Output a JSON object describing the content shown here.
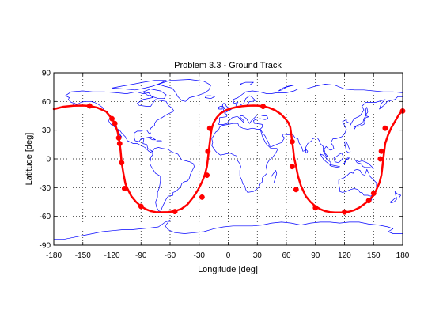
{
  "colors": {
    "coastline": "#0000ff",
    "track": "#ff0000",
    "grid": "#000000",
    "axes": "#000000",
    "background": "#ffffff"
  },
  "chart_data": {
    "type": "line",
    "title": "Problem 3.3 - Ground Track",
    "xlabel": "Longitude [deg]",
    "ylabel": "Latitude [deg]",
    "xlim": [
      -180,
      180
    ],
    "ylim": [
      -90,
      90
    ],
    "xticks": [
      -180,
      -150,
      -120,
      -90,
      -60,
      -30,
      0,
      30,
      60,
      90,
      120,
      150,
      180
    ],
    "yticks": [
      -90,
      -60,
      -30,
      0,
      30,
      60,
      90
    ],
    "grid": true,
    "legend": "none",
    "background_map": "world coastlines",
    "series": [
      {
        "color": "#ff0000",
        "marker": "circle",
        "x": [
          -180,
          -170,
          -160,
          -150,
          -143,
          -135,
          -126,
          -120,
          -117,
          -114,
          -113,
          -112,
          -111,
          -110,
          -108,
          -106,
          -104,
          -100,
          -95,
          -90,
          -85,
          -80,
          -75,
          -70,
          -62,
          -55,
          -48,
          -42,
          -36,
          -31,
          -27,
          -24,
          -22,
          -21,
          -20,
          -19,
          -18,
          -17,
          -15,
          -12,
          -8,
          -3,
          2,
          8,
          14,
          20,
          26,
          32,
          36,
          42,
          48,
          54,
          58,
          62,
          64,
          65,
          66,
          67,
          68,
          70,
          72,
          75,
          80,
          85,
          90,
          95,
          100,
          105,
          110,
          115,
          120,
          125,
          130,
          135,
          140,
          145,
          150,
          153,
          156,
          158,
          159,
          160,
          161,
          162,
          165,
          168,
          172,
          176,
          180
        ],
        "y": [
          52,
          54.5,
          55.5,
          55.7,
          55.3,
          53.5,
          49.5,
          42,
          37,
          28,
          22,
          16,
          8,
          -4,
          -16,
          -26,
          -31,
          -39,
          -45,
          -49.5,
          -52.5,
          -54.5,
          -55.5,
          -55.7,
          -55.5,
          -54.5,
          -52,
          -47.5,
          -40,
          -32,
          -24,
          -16,
          -8,
          0,
          9,
          17,
          26,
          32,
          38,
          43,
          47.5,
          50.5,
          52.5,
          54,
          55,
          55.5,
          55.7,
          55.5,
          55,
          53.5,
          51,
          47,
          43,
          38,
          33,
          26,
          18,
          10,
          1,
          -8,
          -18,
          -28,
          -39,
          -45,
          -49.5,
          -52.5,
          -54.5,
          -55.5,
          -56,
          -56,
          -55.8,
          -55,
          -53.5,
          -51,
          -47.5,
          -43.5,
          -38,
          -32,
          -25,
          -17,
          -9,
          0,
          8,
          16,
          25,
          32,
          39,
          46,
          51
        ],
        "markers": [
          [
            -143,
            55.3
          ],
          [
            -120,
            42
          ],
          [
            -117,
            37
          ],
          [
            -113,
            22
          ],
          [
            -112,
            16
          ],
          [
            -110,
            -4
          ],
          [
            -107,
            -31
          ],
          [
            -90,
            -49.5
          ],
          [
            -55,
            -55
          ],
          [
            -27,
            -40
          ],
          [
            -22,
            -17
          ],
          [
            -21,
            8
          ],
          [
            -19,
            32
          ],
          [
            36,
            54.8
          ],
          [
            66,
            18
          ],
          [
            66,
            -8
          ],
          [
            70,
            -32
          ],
          [
            90,
            -51
          ],
          [
            120,
            -55.5
          ],
          [
            145,
            -43.5
          ],
          [
            150,
            -36
          ],
          [
            157,
            0
          ],
          [
            158,
            8
          ],
          [
            162,
            32
          ],
          [
            180,
            50
          ]
        ]
      }
    ]
  }
}
